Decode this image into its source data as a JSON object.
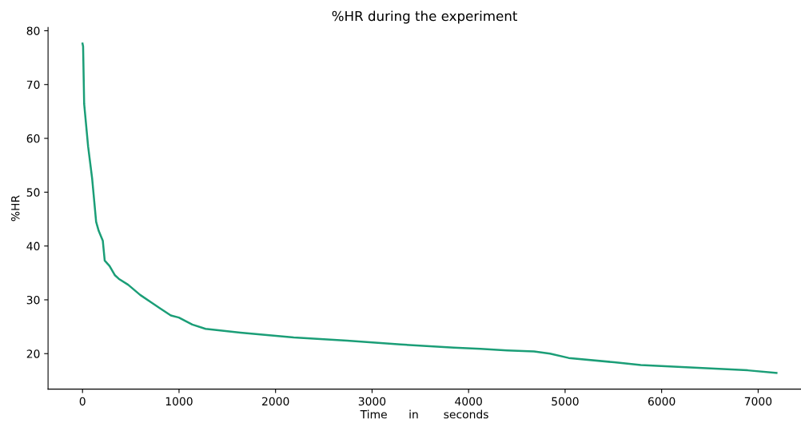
{
  "chart_data": {
    "type": "line",
    "title": "%HR during the experiment",
    "xlabel": "Time      in       seconds",
    "ylabel": "%HR",
    "series": [
      {
        "color": "#1b9e77",
        "x": [
          0,
          6,
          17,
          58,
          100,
          141,
          168,
          210,
          230,
          280,
          334,
          376,
          473,
          598,
          722,
          805,
          915,
          998,
          1137,
          1275,
          1635,
          2188,
          2741,
          3295,
          3848,
          4124,
          4400,
          4678,
          4844,
          5037,
          5508,
          5784,
          6337,
          6891,
          7190
        ],
        "values": [
          77.6,
          77.1,
          66.4,
          58.5,
          52.5,
          44.5,
          42.8,
          41.0,
          37.3,
          36.3,
          34.6,
          33.9,
          32.8,
          30.9,
          29.4,
          28.4,
          27.1,
          26.7,
          25.4,
          24.6,
          23.9,
          23.0,
          22.4,
          21.7,
          21.1,
          20.9,
          20.6,
          20.4,
          20.0,
          19.2,
          18.4,
          17.9,
          17.4,
          16.9,
          16.4
        ]
      }
    ],
    "xlim": [
      -357,
      7444
    ],
    "ylim": [
      13.4,
      80.6
    ],
    "xticks": [
      0,
      1000,
      2000,
      3000,
      4000,
      5000,
      6000,
      7000
    ],
    "yticks": [
      20,
      30,
      40,
      50,
      60,
      70,
      80
    ],
    "grid": false,
    "marker": "none",
    "line_style": "solid"
  }
}
